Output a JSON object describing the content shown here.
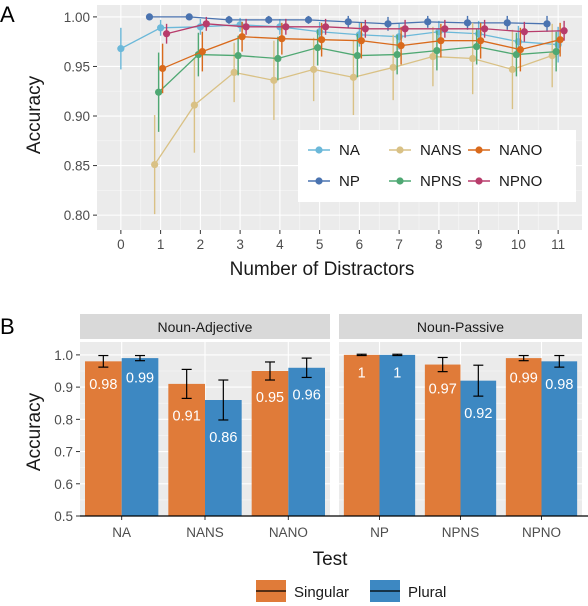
{
  "colors": {
    "NA": "#6bb8d9",
    "NP": "#4a73b0",
    "NANS": "#d9c185",
    "NPNS": "#4fa873",
    "NANO": "#d96a1c",
    "NPNO": "#b83c6b",
    "singular": "#e07b39",
    "plural": "#3d88c2",
    "panel_bg": "#ebebeb",
    "grid_major": "#ffffff",
    "strip_bg": "#d9d9d9"
  },
  "chart_data": [
    {
      "type": "line",
      "panel_label": "A",
      "title": "",
      "xlabel": "Number of Distractors",
      "ylabel": "Accuracy",
      "xlim": [
        -0.6,
        11.6
      ],
      "ylim": [
        0.785,
        1.012
      ],
      "x_ticks": [
        0,
        1,
        2,
        3,
        4,
        5,
        6,
        7,
        8,
        9,
        10,
        11
      ],
      "y_ticks": [
        0.8,
        0.85,
        0.9,
        0.95,
        1.0
      ],
      "y_tick_labels": [
        "0.80",
        "0.85",
        "0.90",
        "0.95",
        "1.00"
      ],
      "grid": true,
      "legend_position": "bottom-right",
      "series": [
        {
          "name": "NA",
          "color_key": "NA",
          "dodge": 0,
          "x": [
            0,
            1,
            2,
            3,
            4,
            5,
            6,
            7,
            8,
            9,
            10,
            11
          ],
          "y": [
            0.968,
            0.989,
            0.99,
            0.992,
            0.99,
            0.985,
            0.982,
            0.98,
            0.985,
            0.983,
            0.975,
            0.972
          ],
          "err": [
            0.021,
            0.008,
            0.008,
            0.007,
            0.008,
            0.01,
            0.012,
            0.013,
            0.011,
            0.013,
            0.016,
            0.018
          ]
        },
        {
          "name": "NP",
          "color_key": "NP",
          "dodge": -0.28,
          "x": [
            1,
            2,
            3,
            4,
            5,
            6,
            7,
            8,
            9,
            10,
            11
          ],
          "y": [
            1.0,
            1.0,
            0.997,
            0.997,
            0.997,
            0.995,
            0.993,
            0.995,
            0.994,
            0.994,
            0.993
          ],
          "err": [
            0.001,
            0.001,
            0.004,
            0.004,
            0.004,
            0.006,
            0.007,
            0.006,
            0.007,
            0.007,
            0.008
          ]
        },
        {
          "name": "NANS",
          "color_key": "NANS",
          "dodge": -0.15,
          "x": [
            1,
            2,
            3,
            4,
            5,
            6,
            7,
            8,
            9,
            10,
            11
          ],
          "y": [
            0.851,
            0.911,
            0.944,
            0.936,
            0.947,
            0.939,
            0.949,
            0.96,
            0.958,
            0.947,
            0.961
          ],
          "err": [
            0.05,
            0.048,
            0.03,
            0.04,
            0.032,
            0.038,
            0.033,
            0.03,
            0.036,
            0.04,
            0.032
          ]
        },
        {
          "name": "NPNS",
          "color_key": "NPNS",
          "dodge": -0.05,
          "x": [
            1,
            2,
            3,
            4,
            5,
            6,
            7,
            8,
            9,
            10,
            11
          ],
          "y": [
            0.924,
            0.962,
            0.961,
            0.958,
            0.969,
            0.961,
            0.962,
            0.966,
            0.97,
            0.962,
            0.965
          ],
          "err": [
            0.04,
            0.022,
            0.02,
            0.022,
            0.018,
            0.022,
            0.02,
            0.02,
            0.018,
            0.022,
            0.02
          ]
        },
        {
          "name": "NANO",
          "color_key": "NANO",
          "dodge": 0.05,
          "x": [
            1,
            2,
            3,
            4,
            5,
            6,
            7,
            8,
            9,
            10,
            11
          ],
          "y": [
            0.948,
            0.965,
            0.98,
            0.978,
            0.977,
            0.976,
            0.971,
            0.976,
            0.976,
            0.967,
            0.977
          ],
          "err": [
            0.025,
            0.02,
            0.015,
            0.016,
            0.017,
            0.018,
            0.019,
            0.017,
            0.018,
            0.022,
            0.017
          ]
        },
        {
          "name": "NPNO",
          "color_key": "NPNO",
          "dodge": 0.15,
          "x": [
            1,
            2,
            3,
            4,
            5,
            6,
            7,
            8,
            9,
            10,
            11
          ],
          "y": [
            0.983,
            0.993,
            0.99,
            0.99,
            0.99,
            0.988,
            0.988,
            0.988,
            0.988,
            0.985,
            0.986
          ],
          "err": [
            0.01,
            0.007,
            0.008,
            0.008,
            0.008,
            0.009,
            0.009,
            0.009,
            0.009,
            0.01,
            0.01
          ]
        }
      ]
    },
    {
      "type": "bar",
      "panel_label": "B",
      "title": "",
      "xlabel": "Test",
      "ylabel": "Accuracy",
      "ylim": [
        0.5,
        1.04
      ],
      "y_ticks": [
        0.5,
        0.6,
        0.7,
        0.8,
        0.9,
        1.0
      ],
      "y_tick_labels": [
        "0.5",
        "0.6",
        "0.7",
        "0.8",
        "0.9",
        "1.0"
      ],
      "grid": true,
      "legend_position": "bottom",
      "facets": [
        {
          "label": "Noun-Adjective",
          "categories": [
            "NA",
            "NANS",
            "NANO"
          ],
          "singular": [
            0.98,
            0.91,
            0.95
          ],
          "singular_err": [
            0.018,
            0.045,
            0.028
          ],
          "plural": [
            0.99,
            0.86,
            0.96
          ],
          "plural_err": [
            0.008,
            0.062,
            0.03
          ],
          "singular_labels": [
            "0.98",
            "0.91",
            "0.95"
          ],
          "plural_labels": [
            "0.99",
            "0.86",
            "0.96"
          ]
        },
        {
          "label": "Noun-Passive",
          "categories": [
            "NP",
            "NPNS",
            "NPNO"
          ],
          "singular": [
            1.0,
            0.97,
            0.99
          ],
          "singular_err": [
            0.002,
            0.022,
            0.008
          ],
          "plural": [
            1.0,
            0.92,
            0.98
          ],
          "plural_err": [
            0.002,
            0.048,
            0.018
          ],
          "singular_labels": [
            "1",
            "0.97",
            "0.99"
          ],
          "plural_labels": [
            "1",
            "0.92",
            "0.98"
          ]
        }
      ],
      "series": [
        {
          "name": "Singular",
          "color_key": "singular"
        },
        {
          "name": "Plural",
          "color_key": "plural"
        }
      ]
    }
  ]
}
